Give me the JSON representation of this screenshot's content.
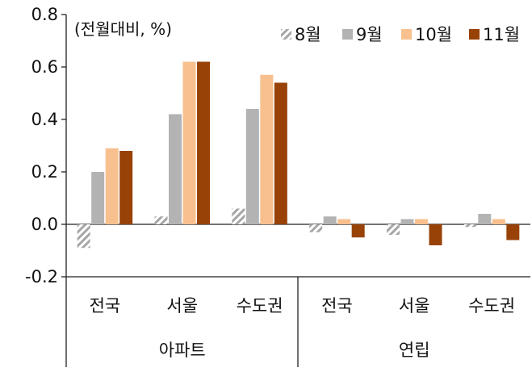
{
  "chart_data": {
    "type": "bar",
    "unit_note": "(전월대비, %)",
    "groups": [
      {
        "label": "아파트",
        "categories": [
          "전국",
          "서울",
          "수도권"
        ]
      },
      {
        "label": "연립",
        "categories": [
          "전국",
          "서울",
          "수도권"
        ]
      }
    ],
    "categories": [
      "전국",
      "서울",
      "수도권",
      "전국",
      "서울",
      "수도권"
    ],
    "ylim": [
      -0.2,
      0.8
    ],
    "yticks": [
      "0.8",
      "0.6",
      "0.4",
      "0.2",
      "0.0",
      "-0.2"
    ],
    "ytick_values": [
      0.8,
      0.6,
      0.4,
      0.2,
      0.0,
      -0.2
    ],
    "legend_position": "top-right",
    "grid": false,
    "series": [
      {
        "name": "8월",
        "color": "#a6a6a6",
        "pattern": "hatched",
        "values": [
          -0.09,
          0.03,
          0.06,
          -0.03,
          -0.04,
          -0.01
        ]
      },
      {
        "name": "9월",
        "color": "#b3b3b3",
        "pattern": "solid",
        "values": [
          0.2,
          0.42,
          0.44,
          0.03,
          0.02,
          0.04
        ]
      },
      {
        "name": "10월",
        "color": "#f8c08f",
        "pattern": "solid",
        "values": [
          0.29,
          0.62,
          0.57,
          0.02,
          0.02,
          0.02
        ]
      },
      {
        "name": "11월",
        "color": "#984208",
        "pattern": "solid",
        "values": [
          0.28,
          0.62,
          0.54,
          -0.05,
          -0.08,
          -0.06
        ]
      }
    ]
  }
}
